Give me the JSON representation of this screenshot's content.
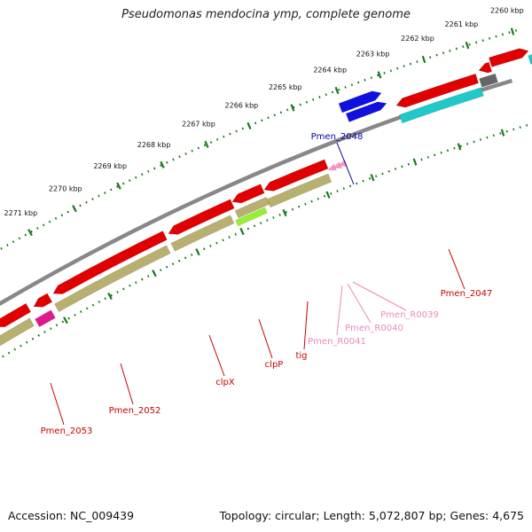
{
  "title": "Pseudomonas mendocina ymp, complete genome",
  "footer": {
    "accession": "Accession: NC_009439",
    "summary": "Topology: circular; Length: 5,072,807 bp; Genes: 4,675"
  },
  "ruler": {
    "ticks": [
      "2260 kbp",
      "2261 kbp",
      "2262 kbp",
      "2263 kbp",
      "2264 kbp",
      "2265 kbp",
      "2266 kbp",
      "2267 kbp",
      "2268 kbp",
      "2269 kbp",
      "2270 kbp",
      "2271 kbp"
    ]
  },
  "colors": {
    "cds": "#e00000",
    "rna": "#ff99cc",
    "blue_feature": "#1010e0",
    "cog_olive": "#b8b070",
    "cog_cyan": "#20c8c8",
    "cog_green": "#99ee33",
    "cog_magenta": "#e0188c",
    "cog_grey": "#666666",
    "backbone": "#888888",
    "tick": "#1a7a1a",
    "label_red": "#cc0000",
    "label_blue": "#0000aa",
    "label_pink": "#ee88bb"
  },
  "genes": [
    {
      "name": "Pmen_2048",
      "color": "label_blue"
    },
    {
      "name": "Pmen_2047",
      "color": "label_red"
    },
    {
      "name": "Pmen_R0039",
      "color": "label_pink"
    },
    {
      "name": "Pmen_R0040",
      "color": "label_pink"
    },
    {
      "name": "Pmen_R0041",
      "color": "label_pink"
    },
    {
      "name": "tig",
      "color": "label_red"
    },
    {
      "name": "clpP",
      "color": "label_red"
    },
    {
      "name": "clpX",
      "color": "label_red"
    },
    {
      "name": "Pmen_2052",
      "color": "label_red"
    },
    {
      "name": "Pmen_2053",
      "color": "label_red"
    }
  ]
}
